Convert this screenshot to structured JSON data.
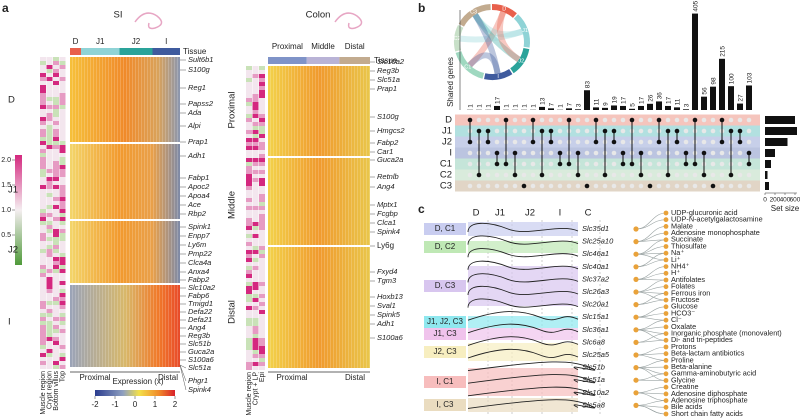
{
  "panel_a": {
    "label": "a",
    "si": {
      "title": "SI",
      "tissue_header": "Tissue",
      "segments": [
        {
          "name": "D",
          "color": "#e8604c"
        },
        {
          "name": "J1",
          "color": "#8fd3d6"
        },
        {
          "name": "J2",
          "color": "#2aa39a"
        },
        {
          "name": "I",
          "color": "#3f5b9e"
        }
      ],
      "region_labels": [
        "D",
        "J1",
        "J2",
        "I"
      ],
      "genes": [
        "Sult6b1",
        "S100g",
        "Reg1",
        "Papss2",
        "Ada",
        "Alpi",
        "Prap1",
        "Adh1",
        "Fabp1",
        "Apoc2",
        "Apoa4",
        "Ace",
        "Rbp2",
        "Spink1",
        "Enpp7",
        "Ly6m",
        "Pmp22",
        "Clca4a",
        "Anxa4",
        "Fabp2",
        "Slc10a2",
        "Fabp6",
        "Tmigd1",
        "Defa22",
        "Defa21",
        "Ang4",
        "Reg3b",
        "Slc51b",
        "Guca2a",
        "S100a6",
        "Slc51a",
        "Phgr1",
        "Spink4"
      ],
      "axis_left": "Proximal",
      "axis_right": "Distal",
      "annotation_labels": [
        "Muscle region",
        "Crypt region",
        "Bottom villus",
        "Top"
      ]
    },
    "colon": {
      "title": "Colon",
      "tissue_header": "Tissue",
      "segments": [
        {
          "name": "Proximal",
          "color": "#7f93c8"
        },
        {
          "name": "Middle",
          "color": "#b9b3d6"
        },
        {
          "name": "Distal",
          "color": "#c2ab8f"
        }
      ],
      "region_labels": [
        "Proximal",
        "Middle",
        "Distal"
      ],
      "genes": [
        "Slc10a2",
        "Reg3b",
        "Slc51a",
        "Prap1",
        "S100g",
        "Hmgcs2",
        "Fabp2",
        "Car1",
        "Guca2a",
        "Retnlb",
        "Ang4",
        "Mptx1",
        "Fcgbp",
        "Clca1",
        "Spink4",
        "Ly6g",
        "Fxyd4",
        "Tgm3",
        "Hoxb13",
        "Sval1",
        "Spink5",
        "Adh1",
        "S100a6"
      ],
      "axis_left": "Proximal",
      "axis_right": "Distal",
      "annotation_labels": [
        "Muscle region",
        "Crypt + LP",
        "Epi"
      ]
    },
    "expression_bar": {
      "label": "Expression (x)",
      "ticks": [
        -2,
        -1,
        0,
        1,
        2
      ]
    },
    "score_bar": {
      "ticks": [
        {
          "value": 2,
          "label": "2.0"
        },
        1.5,
        {
          "value": 1,
          "label": "1.0"
        },
        0.5
      ]
    }
  },
  "panel_b": {
    "label": "b",
    "chart_data": {
      "type": "bar",
      "y_label": "Shared genes",
      "values": [
        1,
        1,
        1,
        17,
        1,
        1,
        1,
        1,
        13,
        7,
        1,
        7,
        3,
        83,
        11,
        9,
        19,
        17,
        5,
        17,
        26,
        36,
        17,
        11,
        3,
        405,
        56,
        98,
        215,
        100,
        27,
        103
      ],
      "ylim": [
        0,
        420
      ],
      "color": "#111111",
      "sets": [
        {
          "name": "D",
          "color": "#f3b7ad"
        },
        {
          "name": "J1",
          "color": "#9fd8d8"
        },
        {
          "name": "J2",
          "color": "#b9c3e3"
        },
        {
          "name": "I",
          "color": "#aab5d8"
        },
        {
          "name": "C1",
          "color": "#b6dfcf"
        },
        {
          "name": "C2",
          "color": "#cfe6d3"
        },
        {
          "name": "C3",
          "color": "#d9cbb8"
        }
      ],
      "set_size": {
        "title": "Set size",
        "values": [
          600,
          640,
          450,
          200,
          120,
          50,
          80
        ],
        "xlim": [
          0,
          600
        ],
        "xticks": [
          0,
          200,
          400,
          600
        ]
      }
    },
    "chord_labels": [
      "D",
      "J1",
      "J2",
      "I",
      "C1",
      "C2",
      "C3"
    ]
  },
  "panel_c": {
    "label": "c",
    "headers": [
      "D",
      "J1",
      "J2",
      "I",
      "C"
    ],
    "clusters": [
      {
        "name": "D, C1",
        "color": "#c9cdf0"
      },
      {
        "name": "D, C2",
        "color": "#bfe8b5"
      },
      {
        "name": "D, C3",
        "color": "#d8c6ef"
      },
      {
        "name": "J1, J2, C3",
        "color": "#8fe8ef"
      },
      {
        "name": "J1, C3",
        "color": "#f0c3ec"
      },
      {
        "name": "J2, C3",
        "color": "#f7eec0"
      },
      {
        "name": "I, C1",
        "color": "#f7bdbd"
      },
      {
        "name": "I, C3",
        "color": "#eadcc0"
      }
    ],
    "genes": [
      "Slc35d1",
      "Slc25a10",
      "Slc46a1",
      "Slc40a1",
      "Slc37a2",
      "Slc26a3",
      "Slc20a1",
      "Slc15a1",
      "Slc36a1",
      "Slc6a8",
      "Slc25a5",
      "Slc51b",
      "Slc51a",
      "Slc10a2",
      "Slc5a8"
    ],
    "substrates": [
      "UDP-glucuronic acid",
      "UDP-N-acetylgalactosamine",
      "Malate",
      "Adenosine monophosphate",
      "Succinate",
      "Thiosulfate",
      "Na⁺",
      "Li⁺",
      "NH4⁺",
      "H⁺",
      "Antifolates",
      "Folates",
      "Ferrous iron",
      "Fructose",
      "Glucose",
      "HCO3⁻",
      "Cl⁻",
      "Oxalate",
      "Inorganic phosphate (monovalent)",
      "Di- and tri-peptides",
      "Protons",
      "Beta-lactam antibiotics",
      "Proline",
      "Beta-alanine",
      "Gamma-aminobutyric acid",
      "Glycine",
      "Creatine",
      "Adenosine diphosphate",
      "Adenosine triphosphate",
      "Bile acids",
      "Short chain fatty acids"
    ]
  }
}
